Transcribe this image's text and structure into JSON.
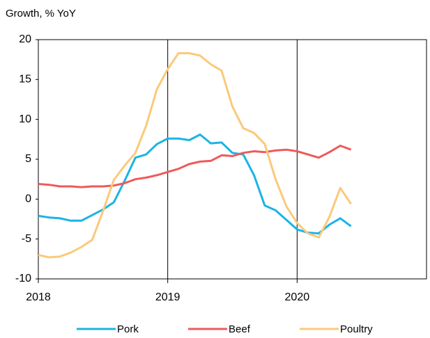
{
  "chart_data": {
    "type": "line",
    "y_label": "Growth, % YoY",
    "x": [
      2018,
      2018.0833,
      2018.1667,
      2018.25,
      2018.3333,
      2018.4167,
      2018.5,
      2018.5833,
      2018.6667,
      2018.75,
      2018.8333,
      2018.9167,
      2019,
      2019.0833,
      2019.1667,
      2019.25,
      2019.3333,
      2019.4167,
      2019.5,
      2019.5833,
      2019.6667,
      2019.75,
      2019.8333,
      2019.9167,
      2020,
      2020.0833,
      2020.1667,
      2020.25,
      2020.3333,
      2020.4167
    ],
    "series": [
      {
        "name": "Pork",
        "color": "#1ab4e4",
        "values": [
          -2.1,
          -2.3,
          -2.4,
          -2.7,
          -2.7,
          -2.0,
          -1.3,
          -0.4,
          2.3,
          5.2,
          5.6,
          6.9,
          7.6,
          7.6,
          7.4,
          8.1,
          7.0,
          7.1,
          5.8,
          5.6,
          3.0,
          -0.8,
          -1.4,
          -2.6,
          -3.8,
          -4.2,
          -4.3,
          -3.2,
          -2.4,
          -3.4
        ]
      },
      {
        "name": "Beef",
        "color": "#ee5a5a",
        "values": [
          1.9,
          1.8,
          1.6,
          1.6,
          1.5,
          1.6,
          1.6,
          1.7,
          2.0,
          2.5,
          2.7,
          3.0,
          3.4,
          3.8,
          4.4,
          4.7,
          4.8,
          5.5,
          5.4,
          5.8,
          6.0,
          5.9,
          6.1,
          6.2,
          6.0,
          5.6,
          5.2,
          5.9,
          6.7,
          6.2
        ]
      },
      {
        "name": "Poultry",
        "color": "#fbc97a",
        "values": [
          -7.0,
          -7.3,
          -7.2,
          -6.7,
          -6.0,
          -5.1,
          -1.5,
          2.4,
          4.2,
          5.8,
          9.2,
          13.8,
          16.3,
          18.3,
          18.3,
          18.0,
          16.9,
          16.1,
          11.6,
          8.9,
          8.3,
          6.9,
          2.5,
          -0.9,
          -3.0,
          -4.3,
          -4.8,
          -2.2,
          1.4,
          -0.6
        ]
      }
    ],
    "xlim": [
      2018,
      2021
    ],
    "xticks": [
      2018,
      2019,
      2020
    ],
    "ylim": [
      -10,
      20
    ],
    "yticks": [
      -10,
      -5,
      0,
      5,
      10,
      15,
      20
    ],
    "legend": "bottom"
  }
}
